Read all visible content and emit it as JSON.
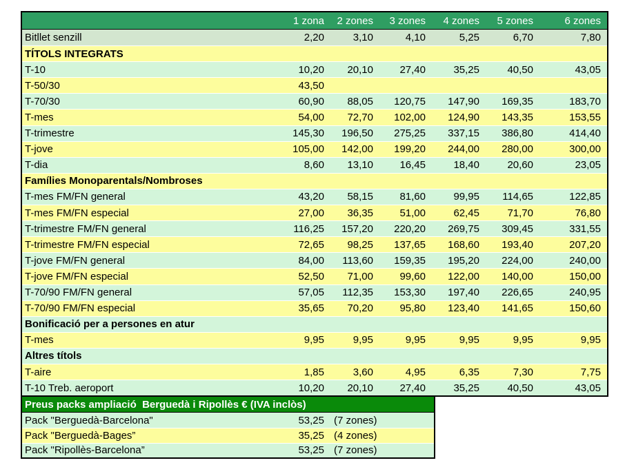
{
  "colors": {
    "header_bg": "#2F9E62",
    "header_text": "#FFFFFF",
    "row_sage": "#D3E6CF",
    "row_green": "#D3F5DA",
    "row_yellow": "#FDFD9D",
    "pack_header_bg": "#0A8A0A",
    "pack_header_text": "#FFFFFF",
    "text": "#000000"
  },
  "chart_data": [
    {
      "type": "table",
      "columns": [
        "1 zona",
        "2 zones",
        "3 zones",
        "4 zones",
        "5 zones",
        "6 zones"
      ],
      "rows": [
        {
          "label": "Bitllet senzill",
          "bg": "sage",
          "values": [
            "2,20",
            "3,10",
            "4,10",
            "5,25",
            "6,70",
            "7,80"
          ]
        },
        {
          "label": "TÍTOLS INTEGRATS",
          "section": true,
          "bg": "yellow"
        },
        {
          "label": "T-10",
          "bg": "green",
          "values": [
            "10,20",
            "20,10",
            "27,40",
            "35,25",
            "40,50",
            "43,05"
          ]
        },
        {
          "label": "T-50/30",
          "bg": "yellow",
          "values": [
            "43,50",
            "",
            "",
            "",
            "",
            ""
          ]
        },
        {
          "label": "T-70/30",
          "bg": "green",
          "values": [
            "60,90",
            "88,05",
            "120,75",
            "147,90",
            "169,35",
            "183,70"
          ]
        },
        {
          "label": "T-mes",
          "bg": "yellow",
          "values": [
            "54,00",
            "72,70",
            "102,00",
            "124,90",
            "143,35",
            "153,55"
          ]
        },
        {
          "label": "T-trimestre",
          "bg": "green",
          "values": [
            "145,30",
            "196,50",
            "275,25",
            "337,15",
            "386,80",
            "414,40"
          ]
        },
        {
          "label": "T-jove",
          "bg": "yellow",
          "values": [
            "105,00",
            "142,00",
            "199,20",
            "244,00",
            "280,00",
            "300,00"
          ]
        },
        {
          "label": "T-dia",
          "bg": "green",
          "values": [
            "8,60",
            "13,10",
            "16,45",
            "18,40",
            "20,60",
            "23,05"
          ]
        },
        {
          "label": "Famílies Monoparentals/Nombroses",
          "section": true,
          "bg": "yellow"
        },
        {
          "label": "T-mes FM/FN general",
          "bg": "green",
          "values": [
            "43,20",
            "58,15",
            "81,60",
            "99,95",
            "114,65",
            "122,85"
          ]
        },
        {
          "label": "T-mes FM/FN especial",
          "bg": "yellow",
          "values": [
            "27,00",
            "36,35",
            "51,00",
            "62,45",
            "71,70",
            "76,80"
          ]
        },
        {
          "label": "T-trimestre FM/FN general",
          "bg": "green",
          "values": [
            "116,25",
            "157,20",
            "220,20",
            "269,75",
            "309,45",
            "331,55"
          ]
        },
        {
          "label": "T-trimestre FM/FN especial",
          "bg": "yellow",
          "values": [
            "72,65",
            "98,25",
            "137,65",
            "168,60",
            "193,40",
            "207,20"
          ]
        },
        {
          "label": "T-jove FM/FN general",
          "bg": "green",
          "values": [
            "84,00",
            "113,60",
            "159,35",
            "195,20",
            "224,00",
            "240,00"
          ]
        },
        {
          "label": "T-jove FM/FN especial",
          "bg": "yellow",
          "values": [
            "52,50",
            "71,00",
            "99,60",
            "122,00",
            "140,00",
            "150,00"
          ]
        },
        {
          "label": "T-70/90 FM/FN general",
          "bg": "green",
          "values": [
            "57,05",
            "112,35",
            "153,30",
            "197,40",
            "226,65",
            "240,95"
          ]
        },
        {
          "label": "T-70/90 FM/FN especial",
          "bg": "yellow",
          "values": [
            "35,65",
            "70,20",
            "95,80",
            "123,40",
            "141,65",
            "150,60"
          ]
        },
        {
          "label": "Bonificació per a persones en atur",
          "section": true,
          "bg": "green"
        },
        {
          "label": "T-mes",
          "bg": "yellow",
          "values": [
            "9,95",
            "9,95",
            "9,95",
            "9,95",
            "9,95",
            "9,95"
          ]
        },
        {
          "label": "Altres títols",
          "section": true,
          "bg": "green"
        },
        {
          "label": "T-aire",
          "bg": "yellow",
          "values": [
            "1,85",
            "3,60",
            "4,95",
            "6,35",
            "7,30",
            "7,75"
          ]
        },
        {
          "label": "T-10 Treb. aeroport",
          "bg": "green",
          "values": [
            "10,20",
            "20,10",
            "27,40",
            "35,25",
            "40,50",
            "43,05"
          ]
        }
      ]
    },
    {
      "type": "table",
      "title": "Preus packs ampliació  Berguedà i Ripollès € (IVA inclòs)",
      "rows": [
        {
          "label": "Pack \"Berguedà-Barcelona\"",
          "price": "53,25",
          "zones": "(7 zones)",
          "bg": "green"
        },
        {
          "label": "Pack \"Berguedà-Bages”",
          "price": "35,25",
          "zones": "(4 zones)",
          "bg": "yellow"
        },
        {
          "label": "Pack \"Ripollès-Barcelona”",
          "price": "53,25",
          "zones": "(7 zones)",
          "bg": "green"
        }
      ]
    }
  ]
}
